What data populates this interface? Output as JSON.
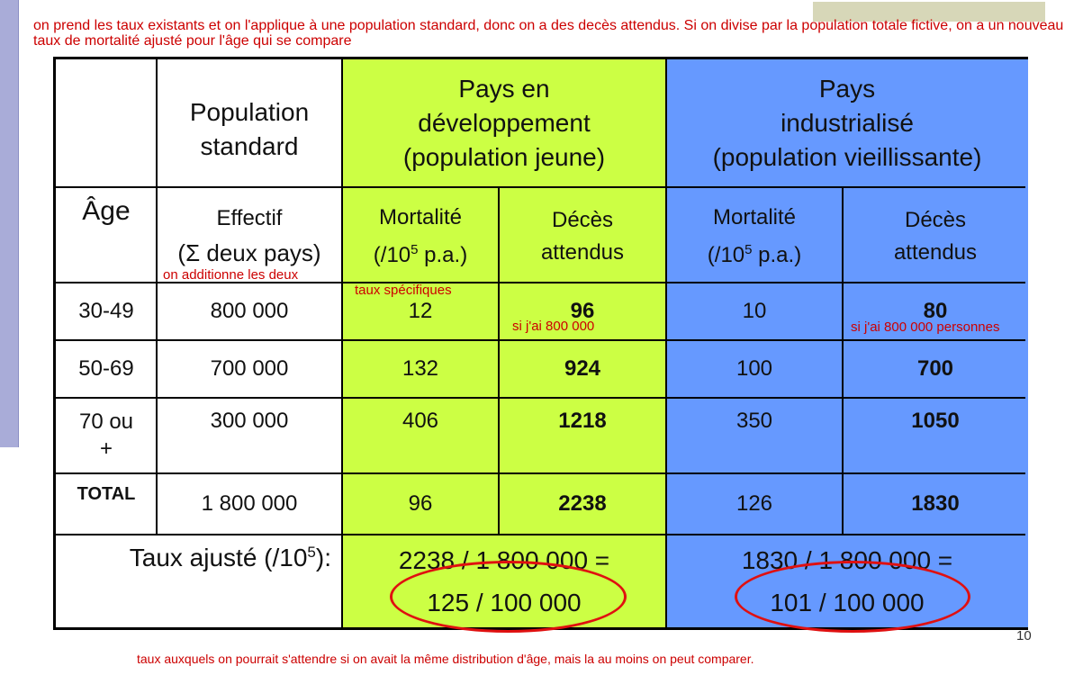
{
  "notes": {
    "top": "on prend les taux existants et on l'applique à une population standard, donc on a des decès attendus. Si on divise par la population totale fictive, on a un nouveau taux de mortalité ajusté pour l'âge qui se compare",
    "bottom": "taux auxquels on pourrait s'attendre si on avait la même distribution d'âge, mais la au moins on peut comparer.",
    "sum_note": "on additionne les deux",
    "specific_rates": "taux spécifiques",
    "if_800k_dev": "si j'ai 800 000",
    "if_800k_ind": "si j'ai 800 000 personnes"
  },
  "page_number": "10",
  "header": {
    "standard": "Population standard",
    "developing": [
      "Pays en",
      "développement",
      "(population jeune)"
    ],
    "industrial": [
      "Pays",
      "industrialisé",
      "(population vieillissante)"
    ]
  },
  "subheader": {
    "age": "Âge",
    "effectif": "Effectif",
    "effectif_sub": "(Σ deux pays)",
    "mortalite": "Mortalité",
    "mortalite_unit_pre": "(/10",
    "mortalite_unit_exp": "5",
    "mortalite_unit_post": " p.a.)",
    "deces": "Décès",
    "deces_sub": "attendus"
  },
  "rows": [
    {
      "age": "30-49",
      "effectif": "800 000",
      "dev_mort": "12",
      "dev_deces": "96",
      "ind_mort": "10",
      "ind_deces": "80"
    },
    {
      "age": "50-69",
      "effectif": "700 000",
      "dev_mort": "132",
      "dev_deces": "924",
      "ind_mort": "100",
      "ind_deces": "700"
    },
    {
      "age": "70 ou +",
      "effectif": "300 000",
      "dev_mort": "406",
      "dev_deces": "1218",
      "ind_mort": "350",
      "ind_deces": "1050"
    },
    {
      "age": "TOTAL",
      "effectif": "1 800 000",
      "dev_mort": "96",
      "dev_deces": "2238",
      "ind_mort": "126",
      "ind_deces": "1830"
    }
  ],
  "adjusted": {
    "label_pre": "Taux ajusté (/10",
    "label_exp": "5",
    "label_post": "):",
    "dev_calc": "2238 / 1 800 000 =",
    "dev_result": "125 / 100 000",
    "ind_calc": "1830 / 1 800 000 =",
    "ind_result": "101 / 100 000"
  },
  "colors": {
    "developing_bg": "#ccff44",
    "industrial_bg": "#6699ff",
    "annotation": "#cc0000"
  }
}
